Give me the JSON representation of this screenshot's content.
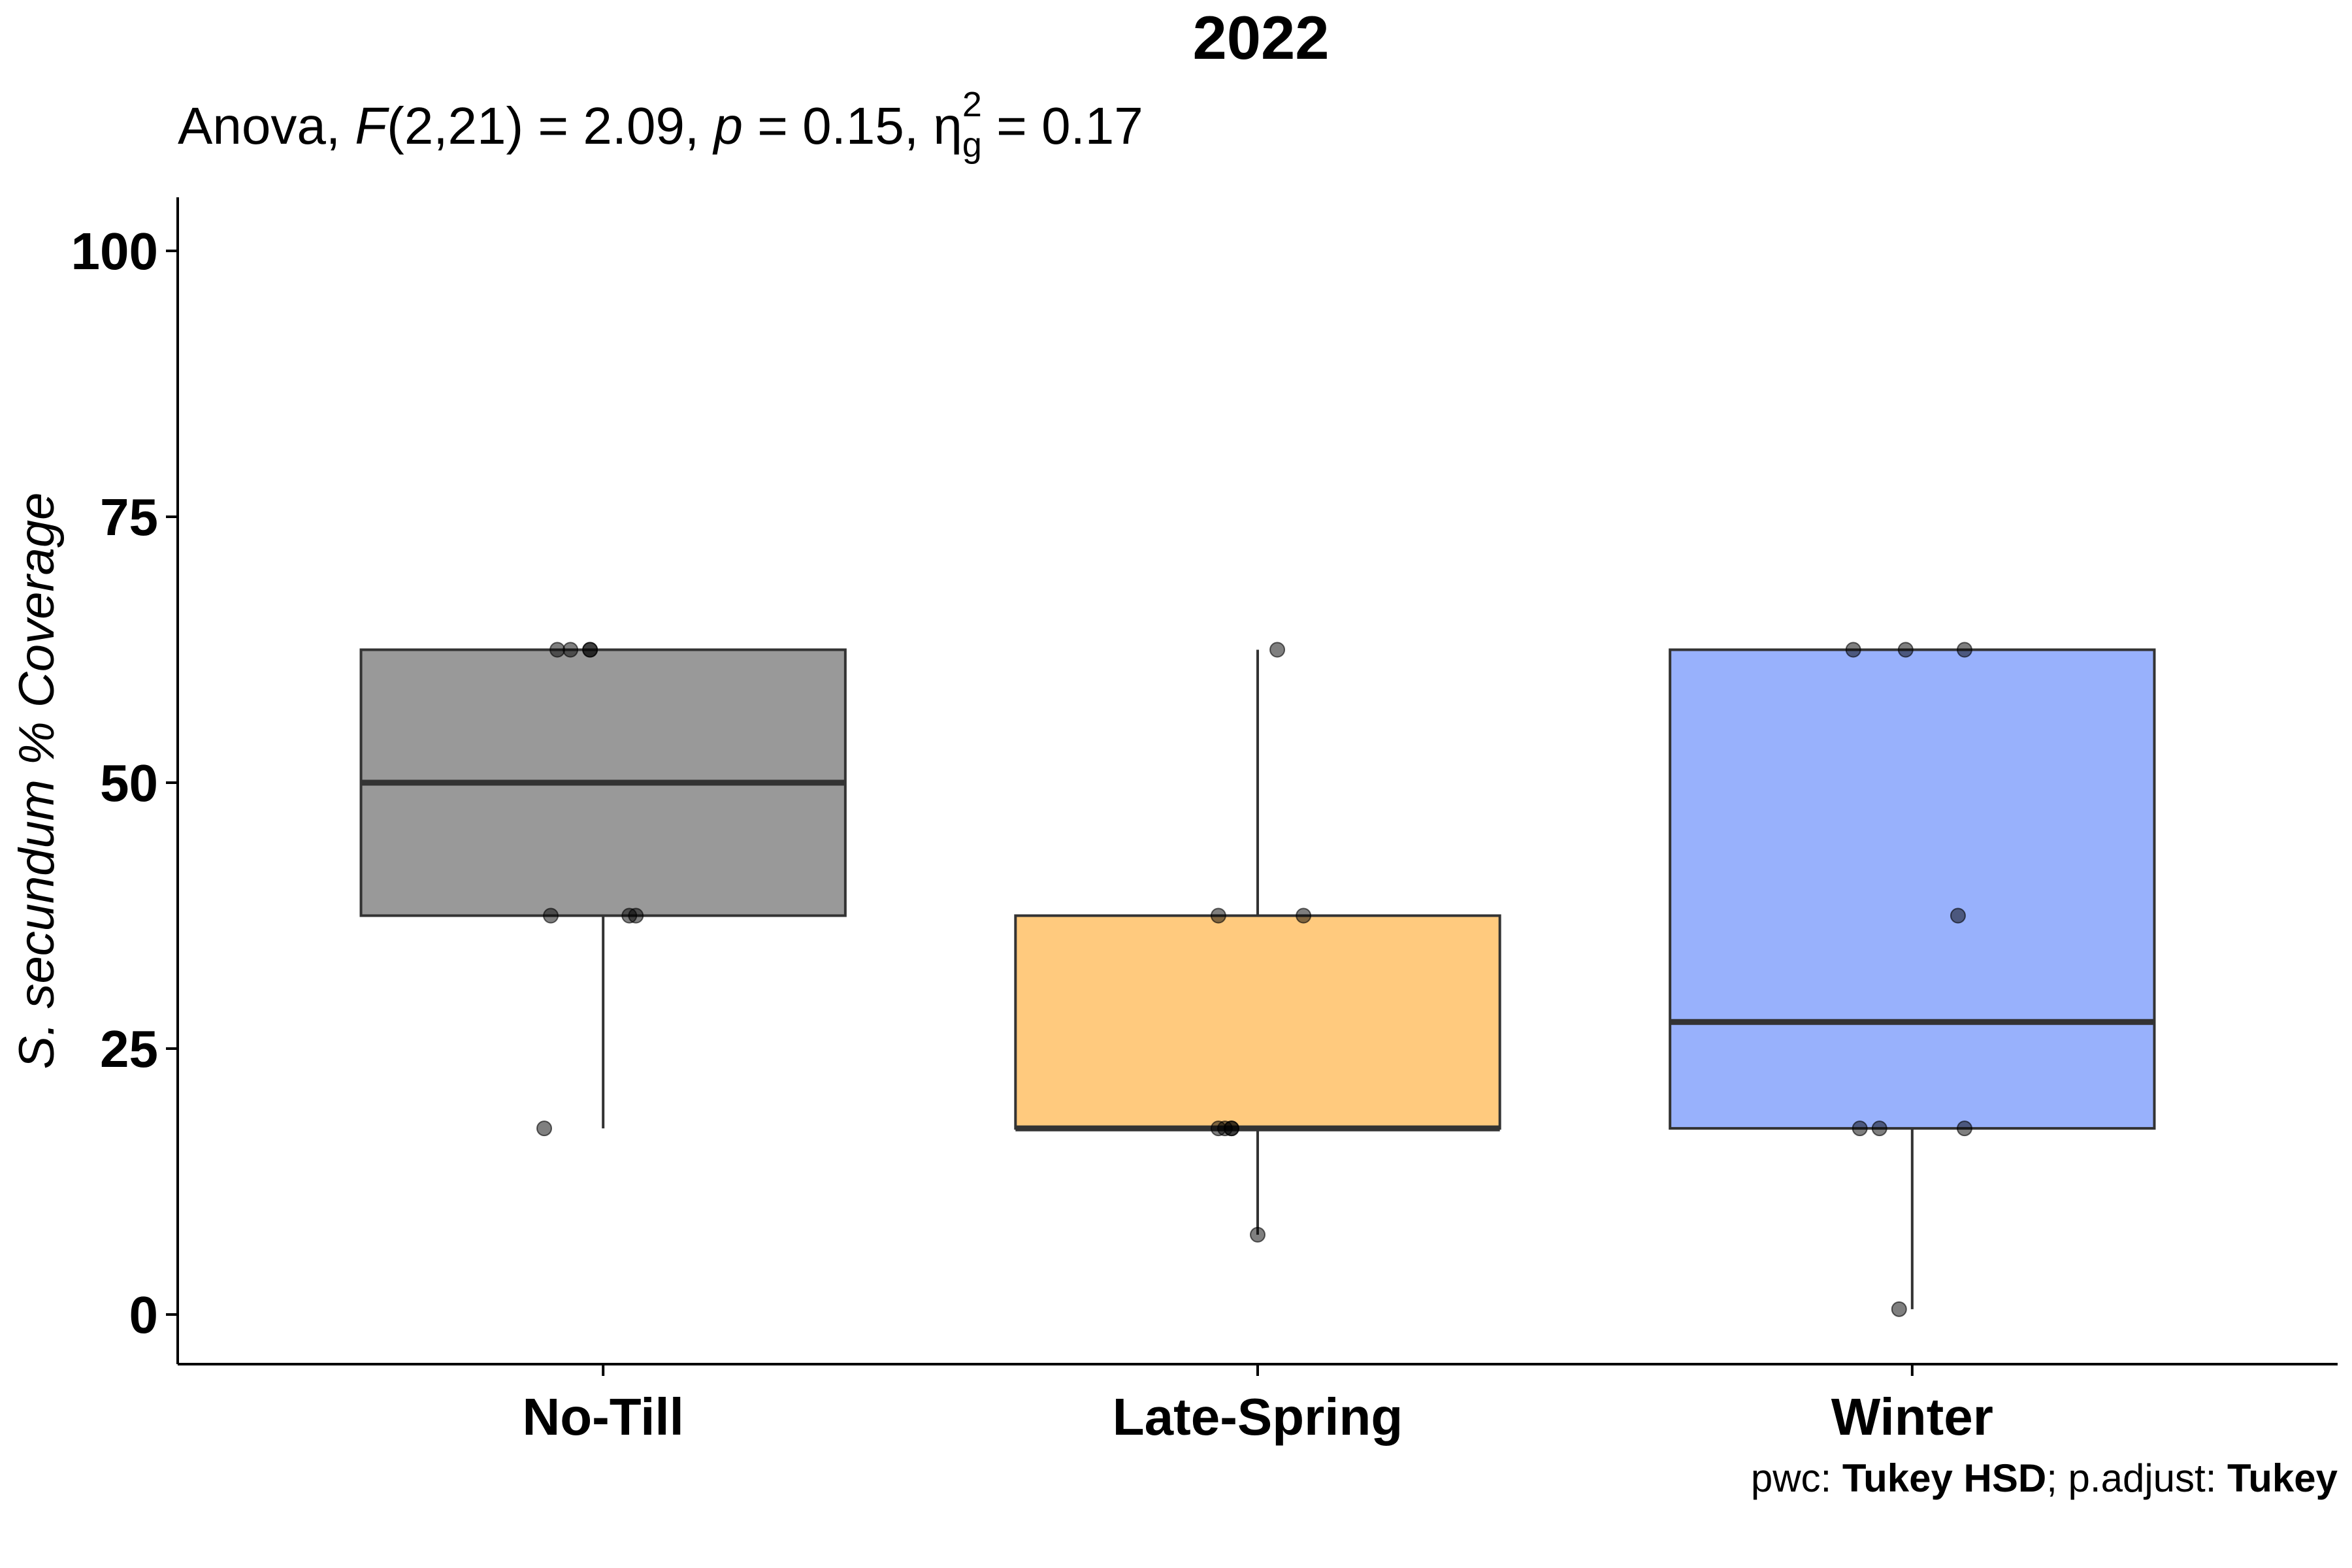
{
  "chart_data": {
    "type": "box",
    "title": "2022",
    "subtitle": {
      "prefix": "Anova, ",
      "stat_symbol": "F",
      "df": "(2,21)",
      "stat_eq": " = 2.09, ",
      "p_symbol": "p",
      "p_eq": " = 0.15, ",
      "effect_symbol": "η",
      "effect_sub": "g",
      "effect_sup": "2",
      "effect_eq": " = 0.17"
    },
    "ylabel": "S. secundum % Coverage",
    "xlabel": "",
    "ylim": [
      -5,
      105
    ],
    "yticks": [
      "0",
      "25",
      "50",
      "75",
      "100"
    ],
    "categories": [
      "No-Till",
      "Late-Spring",
      "Winter"
    ],
    "colors": [
      "#999999",
      "#FFCA7E",
      "#98B1FC"
    ],
    "series": [
      {
        "category": "No-Till",
        "box": {
          "min": 17.5,
          "q1": 37.5,
          "median": 50,
          "q3": 62.5,
          "max": 62.5
        },
        "points": [
          62.5,
          62.5,
          62.5,
          62.5,
          37.5,
          37.5,
          37.5,
          17.5
        ],
        "jitter": [
          -0.07,
          -0.05,
          -0.02,
          -0.02,
          -0.08,
          0.05,
          0.04,
          -0.09
        ]
      },
      {
        "category": "Late-Spring",
        "box": {
          "min": 7.5,
          "q1": 17.5,
          "median": 17.5,
          "q3": 37.5,
          "max": 62.5
        },
        "points": [
          62.5,
          37.5,
          37.5,
          17.5,
          17.5,
          17.5,
          17.5,
          7.5
        ],
        "jitter": [
          0.03,
          -0.06,
          0.07,
          -0.06,
          -0.05,
          -0.04,
          -0.04,
          0.0
        ]
      },
      {
        "category": "Winter",
        "box": {
          "min": 0.5,
          "q1": 17.5,
          "median": 27.5,
          "q3": 62.5,
          "max": 62.5
        },
        "points": [
          62.5,
          62.5,
          62.5,
          37.5,
          17.5,
          17.5,
          17.5,
          0.5
        ],
        "jitter": [
          -0.09,
          -0.01,
          0.08,
          0.07,
          -0.08,
          -0.05,
          0.08,
          -0.02
        ]
      }
    ],
    "caption": {
      "part1": "pwc: ",
      "part2": "Tukey HSD",
      "part3": "; p.adjust: ",
      "part4": "Tukey"
    },
    "grid": false,
    "legend": "none"
  }
}
